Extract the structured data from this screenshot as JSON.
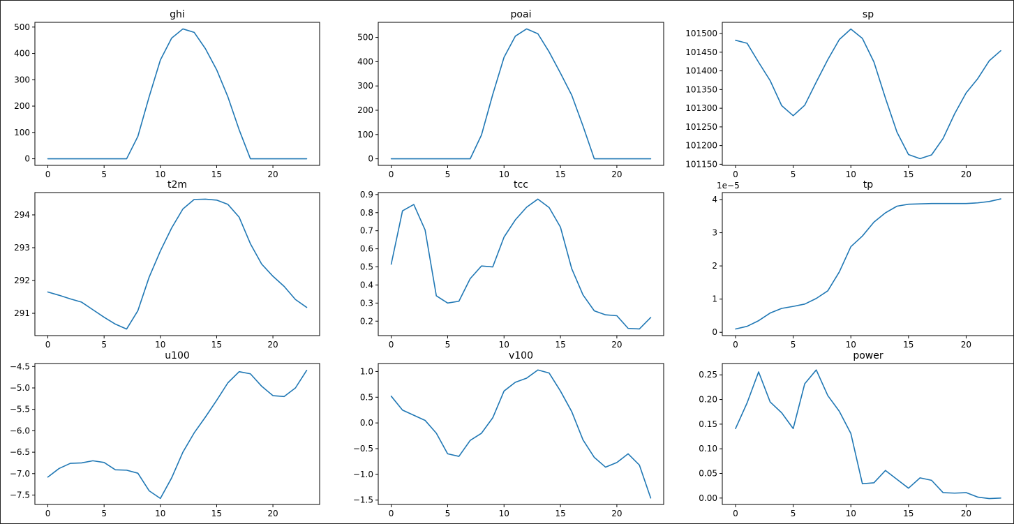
{
  "colors": {
    "line": "#1f77b4",
    "axis": "#000000",
    "background": "#ffffff"
  },
  "chart_data": [
    {
      "type": "line",
      "title": "ghi",
      "offset_label": "",
      "x": [
        0,
        1,
        2,
        3,
        4,
        5,
        6,
        7,
        8,
        9,
        10,
        11,
        12,
        13,
        14,
        15,
        16,
        17,
        18,
        19,
        20,
        21,
        22,
        23
      ],
      "values": [
        0,
        0,
        0,
        0,
        0,
        0,
        0,
        0,
        85,
        235,
        375,
        458,
        493,
        480,
        418,
        338,
        235,
        110,
        0,
        0,
        0,
        0,
        0,
        0
      ],
      "xlim": [
        -1.15,
        24.15
      ],
      "ylim": [
        -25,
        518
      ],
      "xticks": [
        0,
        5,
        10,
        15,
        20
      ],
      "xtick_labels": [
        "0",
        "5",
        "10",
        "15",
        "20"
      ],
      "yticks": [
        0,
        100,
        200,
        300,
        400,
        500
      ],
      "ytick_labels": [
        "0",
        "100",
        "200",
        "300",
        "400",
        "500"
      ]
    },
    {
      "type": "line",
      "title": "poai",
      "offset_label": "",
      "x": [
        0,
        1,
        2,
        3,
        4,
        5,
        6,
        7,
        8,
        9,
        10,
        11,
        12,
        13,
        14,
        15,
        16,
        17,
        18,
        19,
        20,
        21,
        22,
        23
      ],
      "values": [
        0,
        0,
        0,
        0,
        0,
        0,
        0,
        0,
        98,
        265,
        418,
        505,
        535,
        515,
        440,
        353,
        262,
        135,
        0,
        0,
        0,
        0,
        0,
        0
      ],
      "xlim": [
        -1.15,
        24.15
      ],
      "ylim": [
        -27,
        562
      ],
      "xticks": [
        0,
        5,
        10,
        15,
        20
      ],
      "xtick_labels": [
        "0",
        "5",
        "10",
        "15",
        "20"
      ],
      "yticks": [
        0,
        100,
        200,
        300,
        400,
        500
      ],
      "ytick_labels": [
        "0",
        "100",
        "200",
        "300",
        "400",
        "500"
      ]
    },
    {
      "type": "line",
      "title": "sp",
      "offset_label": "",
      "x": [
        0,
        1,
        2,
        3,
        4,
        5,
        6,
        7,
        8,
        9,
        10,
        11,
        12,
        13,
        14,
        15,
        16,
        17,
        18,
        19,
        20,
        21,
        22,
        23
      ],
      "values": [
        101482,
        101474,
        101423,
        101374,
        101307,
        101280,
        101308,
        101370,
        101430,
        101484,
        101512,
        101487,
        101424,
        101327,
        101236,
        101176,
        101165,
        101175,
        101219,
        101285,
        101341,
        101379,
        101427,
        101454
      ],
      "xlim": [
        -1.15,
        24.15
      ],
      "ylim": [
        101147,
        101530
      ],
      "xticks": [
        0,
        5,
        10,
        15,
        20
      ],
      "xtick_labels": [
        "0",
        "5",
        "10",
        "15",
        "20"
      ],
      "yticks": [
        101150,
        101200,
        101250,
        101300,
        101350,
        101400,
        101450,
        101500
      ],
      "ytick_labels": [
        "101150",
        "101200",
        "101250",
        "101300",
        "101350",
        "101400",
        "101450",
        "101500"
      ]
    },
    {
      "type": "line",
      "title": "t2m",
      "offset_label": "",
      "x": [
        0,
        1,
        2,
        3,
        4,
        5,
        6,
        7,
        8,
        9,
        10,
        11,
        12,
        13,
        14,
        15,
        16,
        17,
        18,
        19,
        20,
        21,
        22,
        23
      ],
      "values": [
        291.65,
        291.55,
        291.44,
        291.34,
        291.11,
        290.88,
        290.67,
        290.52,
        291.08,
        292.1,
        292.9,
        293.6,
        294.18,
        294.47,
        294.48,
        294.45,
        294.32,
        293.93,
        293.12,
        292.5,
        292.13,
        291.82,
        291.42,
        291.18
      ],
      "xlim": [
        -1.15,
        24.15
      ],
      "ylim": [
        290.32,
        294.68
      ],
      "xticks": [
        0,
        5,
        10,
        15,
        20
      ],
      "xtick_labels": [
        "0",
        "5",
        "10",
        "15",
        "20"
      ],
      "yticks": [
        291,
        292,
        293,
        294
      ],
      "ytick_labels": [
        "291",
        "292",
        "293",
        "294"
      ]
    },
    {
      "type": "line",
      "title": "tcc",
      "offset_label": "",
      "x": [
        0,
        1,
        2,
        3,
        4,
        5,
        6,
        7,
        8,
        9,
        10,
        11,
        12,
        13,
        14,
        15,
        16,
        17,
        18,
        19,
        20,
        21,
        22,
        23
      ],
      "values": [
        0.515,
        0.81,
        0.845,
        0.705,
        0.34,
        0.3,
        0.31,
        0.435,
        0.505,
        0.5,
        0.665,
        0.76,
        0.83,
        0.875,
        0.828,
        0.72,
        0.49,
        0.345,
        0.257,
        0.235,
        0.23,
        0.16,
        0.157,
        0.22
      ],
      "xlim": [
        -1.15,
        24.15
      ],
      "ylim": [
        0.12,
        0.911
      ],
      "xticks": [
        0,
        5,
        10,
        15,
        20
      ],
      "xtick_labels": [
        "0",
        "5",
        "10",
        "15",
        "20"
      ],
      "yticks": [
        0.2,
        0.3,
        0.4,
        0.5,
        0.6,
        0.7,
        0.8,
        0.9
      ],
      "ytick_labels": [
        "0.2",
        "0.3",
        "0.4",
        "0.5",
        "0.6",
        "0.7",
        "0.8",
        "0.9"
      ]
    },
    {
      "type": "line",
      "title": "tp",
      "offset_label": "1e−5",
      "x": [
        0,
        1,
        2,
        3,
        4,
        5,
        6,
        7,
        8,
        9,
        10,
        11,
        12,
        13,
        14,
        15,
        16,
        17,
        18,
        19,
        20,
        21,
        22,
        23
      ],
      "values": [
        0.1,
        0.18,
        0.35,
        0.58,
        0.72,
        0.78,
        0.85,
        1.02,
        1.25,
        1.82,
        2.58,
        2.9,
        3.32,
        3.6,
        3.8,
        3.86,
        3.87,
        3.88,
        3.88,
        3.88,
        3.88,
        3.9,
        3.94,
        4.02
      ],
      "xlim": [
        -1.15,
        24.15
      ],
      "ylim": [
        -0.1,
        4.21
      ],
      "xticks": [
        0,
        5,
        10,
        15,
        20
      ],
      "xtick_labels": [
        "0",
        "5",
        "10",
        "15",
        "20"
      ],
      "yticks": [
        0,
        1,
        2,
        3,
        4
      ],
      "ytick_labels": [
        "0",
        "1",
        "2",
        "3",
        "4"
      ]
    },
    {
      "type": "line",
      "title": "u100",
      "offset_label": "",
      "x": [
        0,
        1,
        2,
        3,
        4,
        5,
        6,
        7,
        8,
        9,
        10,
        11,
        12,
        13,
        14,
        15,
        16,
        17,
        18,
        19,
        20,
        21,
        22,
        23
      ],
      "values": [
        -7.08,
        -6.88,
        -6.76,
        -6.75,
        -6.7,
        -6.74,
        -6.91,
        -6.92,
        -6.99,
        -7.4,
        -7.58,
        -7.1,
        -6.5,
        -6.05,
        -5.68,
        -5.29,
        -4.88,
        -4.62,
        -4.67,
        -4.96,
        -5.18,
        -5.2,
        -5.0,
        -4.59
      ],
      "xlim": [
        -1.15,
        24.15
      ],
      "ylim": [
        -7.72,
        -4.43
      ],
      "xticks": [
        0,
        5,
        10,
        15,
        20
      ],
      "xtick_labels": [
        "0",
        "5",
        "10",
        "15",
        "20"
      ],
      "yticks": [
        -7.5,
        -7.0,
        -6.5,
        -6.0,
        -5.5,
        -5.0,
        -4.5
      ],
      "ytick_labels": [
        "−7.5",
        "−7.0",
        "−6.5",
        "−6.0",
        "−5.5",
        "−5.0",
        "−4.5"
      ]
    },
    {
      "type": "line",
      "title": "v100",
      "offset_label": "",
      "x": [
        0,
        1,
        2,
        3,
        4,
        5,
        6,
        7,
        8,
        9,
        10,
        11,
        12,
        13,
        14,
        15,
        16,
        17,
        18,
        19,
        20,
        21,
        22,
        23
      ],
      "values": [
        0.52,
        0.25,
        0.15,
        0.05,
        -0.2,
        -0.6,
        -0.65,
        -0.34,
        -0.2,
        0.1,
        0.62,
        0.79,
        0.87,
        1.03,
        0.97,
        0.62,
        0.22,
        -0.33,
        -0.67,
        -0.86,
        -0.77,
        -0.6,
        -0.82,
        -1.46
      ],
      "xlim": [
        -1.15,
        24.15
      ],
      "ylim": [
        -1.585,
        1.155
      ],
      "xticks": [
        0,
        5,
        10,
        15,
        20
      ],
      "xtick_labels": [
        "0",
        "5",
        "10",
        "15",
        "20"
      ],
      "yticks": [
        -1.5,
        -1.0,
        -0.5,
        0.0,
        0.5,
        1.0
      ],
      "ytick_labels": [
        "−1.5",
        "−1.0",
        "−0.5",
        "0.0",
        "0.5",
        "1.0"
      ]
    },
    {
      "type": "line",
      "title": "power",
      "offset_label": "",
      "x": [
        0,
        1,
        2,
        3,
        4,
        5,
        6,
        7,
        8,
        9,
        10,
        11,
        12,
        13,
        14,
        15,
        16,
        17,
        18,
        19,
        20,
        21,
        22,
        23
      ],
      "values": [
        0.141,
        0.193,
        0.256,
        0.195,
        0.173,
        0.141,
        0.232,
        0.26,
        0.208,
        0.176,
        0.131,
        0.029,
        0.031,
        0.056,
        0.038,
        0.02,
        0.041,
        0.036,
        0.011,
        0.01,
        0.011,
        0.002,
        -0.001,
        0.0
      ],
      "xlim": [
        -1.15,
        24.15
      ],
      "ylim": [
        -0.013,
        0.273
      ],
      "xticks": [
        0,
        5,
        10,
        15,
        20
      ],
      "xtick_labels": [
        "0",
        "5",
        "10",
        "15",
        "20"
      ],
      "yticks": [
        0.0,
        0.05,
        0.1,
        0.15,
        0.2,
        0.25
      ],
      "ytick_labels": [
        "0.00",
        "0.05",
        "0.10",
        "0.15",
        "0.20",
        "0.25"
      ]
    }
  ]
}
